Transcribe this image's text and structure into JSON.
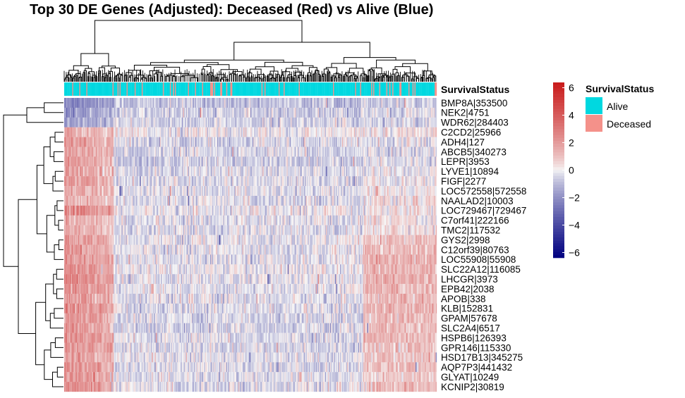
{
  "chart_data": {
    "type": "heatmap",
    "title": "Top 30 DE Genes (Adjusted): Deceased (Red) vs Alive (Blue)",
    "rows": [
      "BMP8A|353500",
      "NEK2|4751",
      "WDR62|284403",
      "C2CD2|25966",
      "ADH4|127",
      "ABCB5|340273",
      "LEPR|3953",
      "LYVE1|10894",
      "FIGF|2277",
      "LOC572558|572558",
      "NAALAD2|10003",
      "LOC729467|729467",
      "C7orf41|222166",
      "TMC2|117532",
      "GYS2|2998",
      "C12orf39|80763",
      "LOC55908|55908",
      "SLC22A12|116085",
      "LHCGR|3973",
      "EPB42|2038",
      "APOB|338",
      "KLB|152831",
      "GPAM|57678",
      "SLC2A4|6517",
      "HSPB6|126393",
      "GPR146|115330",
      "HSD17B13|345275",
      "AQP7P3|441432",
      "GLYAT|10249",
      "KCNIP2|30819"
    ],
    "row_profiles": [
      {
        "left": -2.2,
        "mid": -0.8,
        "right": -0.5
      },
      {
        "left": -2.0,
        "mid": -0.6,
        "right": -0.4
      },
      {
        "left": -1.8,
        "mid": -0.5,
        "right": -0.3
      },
      {
        "left": 1.5,
        "mid": 0.0,
        "right": 0.3
      },
      {
        "left": 2.0,
        "mid": -0.4,
        "right": -0.2
      },
      {
        "left": 1.8,
        "mid": -0.5,
        "right": -0.3
      },
      {
        "left": 1.9,
        "mid": -0.6,
        "right": -0.2
      },
      {
        "left": 2.0,
        "mid": -0.4,
        "right": -0.1
      },
      {
        "left": 2.1,
        "mid": -0.4,
        "right": 0.0
      },
      {
        "left": 1.7,
        "mid": -0.3,
        "right": 0.1
      },
      {
        "left": 1.6,
        "mid": -0.3,
        "right": 0.2
      },
      {
        "left": 2.8,
        "mid": -0.1,
        "right": 0.4
      },
      {
        "left": 1.4,
        "mid": -0.3,
        "right": 0.3
      },
      {
        "left": 1.5,
        "mid": -0.3,
        "right": 0.4
      },
      {
        "left": 1.9,
        "mid": -0.2,
        "right": 0.8
      },
      {
        "left": 2.0,
        "mid": -0.2,
        "right": 1.0
      },
      {
        "left": 2.2,
        "mid": -0.2,
        "right": 1.2
      },
      {
        "left": 2.4,
        "mid": -0.1,
        "right": 1.1
      },
      {
        "left": 2.6,
        "mid": -0.2,
        "right": 1.3
      },
      {
        "left": 2.4,
        "mid": -0.2,
        "right": 1.2
      },
      {
        "left": 2.2,
        "mid": -0.3,
        "right": 1.1
      },
      {
        "left": 2.3,
        "mid": -0.3,
        "right": 1.2
      },
      {
        "left": 2.1,
        "mid": -0.4,
        "right": 1.0
      },
      {
        "left": 2.2,
        "mid": -0.5,
        "right": 1.1
      },
      {
        "left": 2.4,
        "mid": -0.4,
        "right": 1.2
      },
      {
        "left": 2.3,
        "mid": -0.4,
        "right": 1.0
      },
      {
        "left": 2.0,
        "mid": -0.3,
        "right": 0.9
      },
      {
        "left": 2.2,
        "mid": -0.4,
        "right": 1.0
      },
      {
        "left": 2.1,
        "mid": -0.3,
        "right": 0.8
      },
      {
        "left": 2.5,
        "mid": -0.3,
        "right": 1.1
      }
    ],
    "column_count": 370,
    "color_scale": {
      "min": -6,
      "max": 6,
      "ticks": [
        6,
        4,
        2,
        0,
        -2,
        -4,
        -6
      ],
      "low_color": "#00007f",
      "mid_color": "#f7f7f7",
      "high_color": "#c91a1a"
    },
    "annotation": {
      "name": "SurvivalStatus",
      "levels": [
        {
          "label": "Alive",
          "color": "#00d8e0"
        },
        {
          "label": "Deceased",
          "color": "#f4918a"
        }
      ],
      "deceased_fraction": 0.12
    },
    "legend_placement": "right"
  }
}
